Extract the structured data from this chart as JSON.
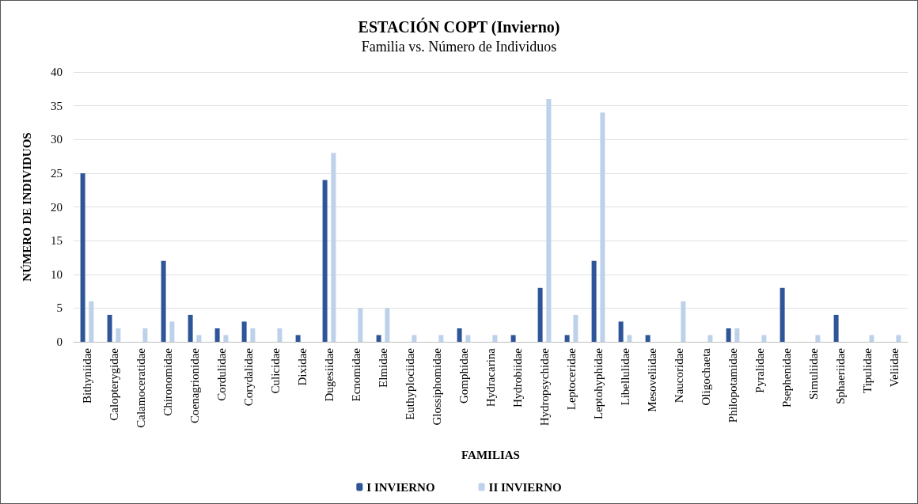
{
  "chart_data": {
    "type": "bar",
    "title": "ESTACIÓN COPT (Invierno)",
    "subtitle": "Familia vs. Número de Individuos",
    "xlabel": "FAMILIAS",
    "ylabel": "NÚMERO DE INDIVIDUOS",
    "categories": [
      "Bithyniidae",
      "Calopterygidae",
      "Calamoceratidae",
      "Chironomidae",
      "Coenagrionidae",
      "Cordulidae",
      "Corydalidae",
      "Culicidae",
      "Dixidae",
      "Dugesiidae",
      "Ecnomidae",
      "Elmidae",
      "Euthyplociidae",
      "Glossiphomidae",
      "Gomphidae",
      "Hydracarina",
      "Hydrobiidae",
      "Hydropsychidae",
      "Leptoceridae",
      "Leptohyphidae",
      "Libellulidae",
      "Mesoveliidae",
      "Naucoridae",
      "Oligochaeta",
      "Philopotamidae",
      "Pyralidae",
      "Psephenidae",
      "Simuliidae",
      "Sphaeriidae",
      "Tipulidae",
      "Veliidae"
    ],
    "series": [
      {
        "name": "I INVIERNO",
        "color": "#2e5597",
        "values": [
          25,
          4,
          0,
          12,
          4,
          2,
          3,
          0,
          1,
          24,
          0,
          1,
          0,
          0,
          2,
          0,
          1,
          8,
          1,
          12,
          3,
          1,
          0,
          0,
          2,
          0,
          8,
          0,
          4,
          0,
          0
        ]
      },
      {
        "name": "II INVIERNO",
        "color": "#bdd1ea",
        "values": [
          6,
          2,
          2,
          3,
          1,
          1,
          2,
          2,
          0,
          28,
          5,
          5,
          1,
          1,
          1,
          1,
          0,
          36,
          4,
          34,
          1,
          0,
          6,
          1,
          2,
          1,
          0,
          1,
          0,
          1,
          1
        ]
      }
    ],
    "ylim": [
      0,
      40
    ],
    "yticks": [
      0,
      5,
      10,
      15,
      20,
      25,
      30,
      35,
      40
    ],
    "grid": "y",
    "legend": "bottom"
  }
}
